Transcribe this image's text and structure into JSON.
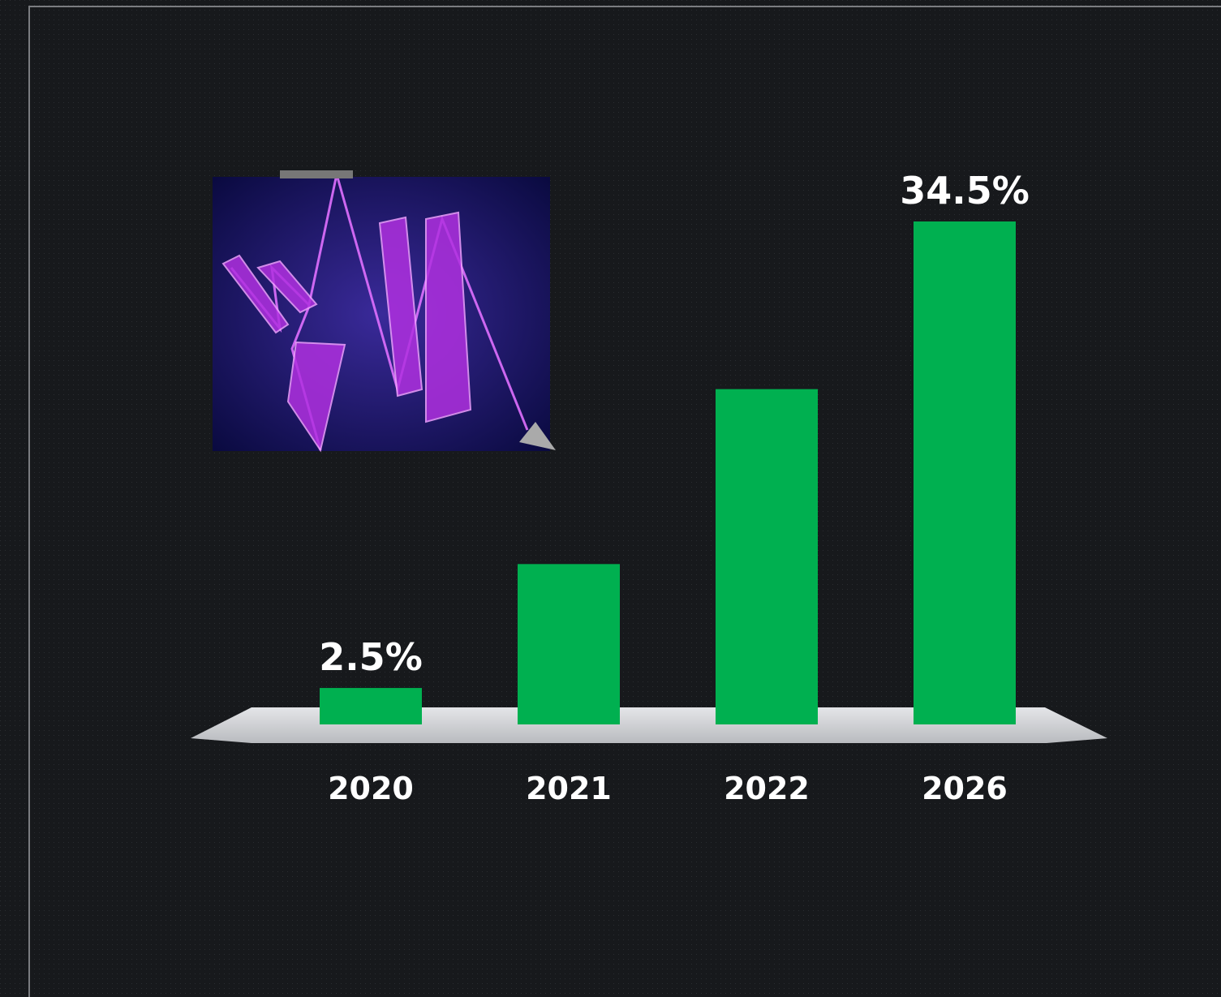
{
  "chart_data": {
    "type": "bar",
    "categories": [
      "2020",
      "2021",
      "2022",
      "2026"
    ],
    "values": [
      2.5,
      11,
      23,
      34.5
    ],
    "value_labels": [
      "2.5%",
      null,
      null,
      "34.5%"
    ],
    "color": "#00b050"
  }
}
